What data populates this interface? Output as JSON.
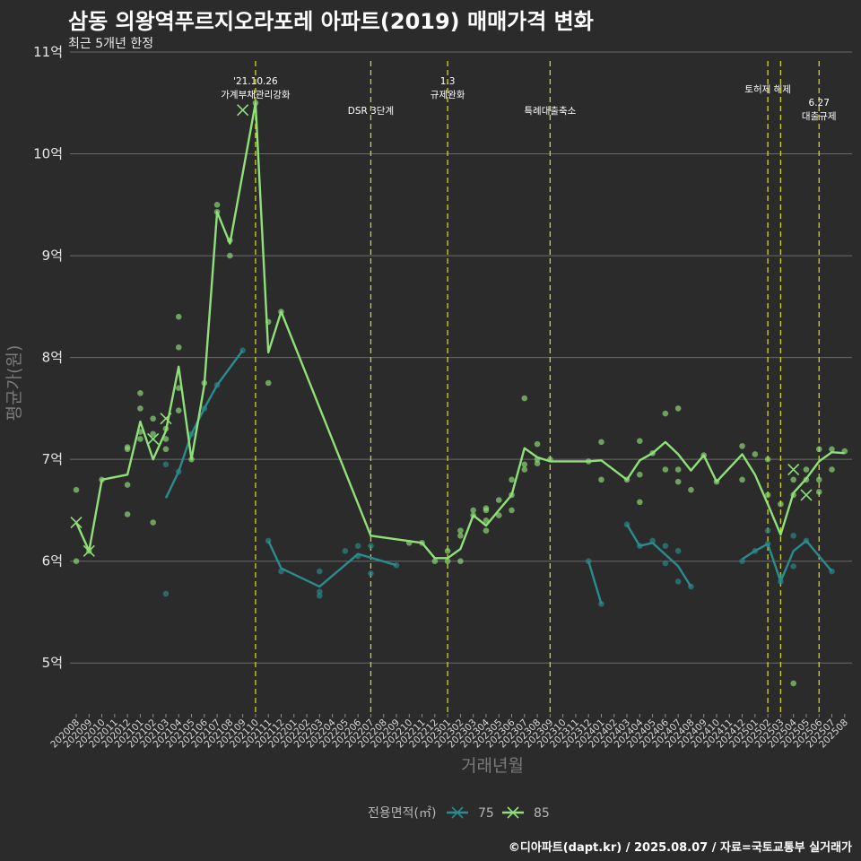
{
  "header": {
    "title": "삼동 의왕역푸르지오라포레 아파트(2019) 매매가격 변화",
    "subtitle": "최근 5개년 한정"
  },
  "caption": "©디아파트(dapt.kr) / 2025.08.07 / 자료=국토교통부 실거래가",
  "colors": {
    "background": "#2b2b2b",
    "s75": "#2a8c8c",
    "s85": "#90e07a",
    "event": "#d4d41e"
  },
  "chart_data": {
    "type": "line",
    "xlabel": "거래년월",
    "ylabel": "평균가(원)",
    "ylim": [
      4.5,
      11
    ],
    "y_ticks": [
      5,
      6,
      7,
      8,
      9,
      10,
      11
    ],
    "y_tick_labels": [
      "5억",
      "6억",
      "7억",
      "8억",
      "9억",
      "10억",
      "11억"
    ],
    "legend_title": "전용면적(㎡)",
    "legend_position": "bottom",
    "grid": true,
    "categories": [
      "202008",
      "202009",
      "202010",
      "202011",
      "202012",
      "202101",
      "202102",
      "202103",
      "202104",
      "202105",
      "202106",
      "202107",
      "202108",
      "202109",
      "202110",
      "202111",
      "202112",
      "202201",
      "202202",
      "202203",
      "202204",
      "202205",
      "202206",
      "202207",
      "202208",
      "202209",
      "202210",
      "202211",
      "202212",
      "202301",
      "202302",
      "202303",
      "202304",
      "202305",
      "202306",
      "202307",
      "202308",
      "202309",
      "202310",
      "202311",
      "202312",
      "202401",
      "202402",
      "202403",
      "202404",
      "202405",
      "202406",
      "202407",
      "202408",
      "202409",
      "202410",
      "202411",
      "202412",
      "202501",
      "202502",
      "202503",
      "202504",
      "202505",
      "202506",
      "202507",
      "202508"
    ],
    "events": [
      {
        "x": "202110",
        "label": "'21.10.26\n가계부채관리강화",
        "row": 1
      },
      {
        "x": "202207",
        "label": "DSR 3단계",
        "row": 3
      },
      {
        "x": "202301",
        "label": "1.3\n규제완화",
        "row": 1
      },
      {
        "x": "202309",
        "label": "특례대출축소",
        "row": 3
      },
      {
        "x": "202502",
        "label": "토허제 해제",
        "row": 2
      },
      {
        "x": "202503",
        "label": "",
        "row": 2
      },
      {
        "x": "202506",
        "label": "6.27\n대출규제",
        "row": 4
      }
    ],
    "series": [
      {
        "name": "75",
        "color": "#2a8c8c",
        "line": [
          [
            [
              "202103",
              6.62
            ],
            [
              "202104",
              6.88
            ],
            [
              "202105",
              7.25
            ],
            [
              "202106",
              7.5
            ],
            [
              "202107",
              7.73
            ],
            [
              "202109",
              8.07
            ]
          ],
          [
            [
              "202111",
              6.2
            ],
            [
              "202112",
              5.93
            ],
            [
              "202203",
              5.75
            ],
            [
              "202206",
              6.07
            ],
            [
              "202209",
              5.96
            ]
          ],
          [
            [
              "202312",
              6.0
            ],
            [
              "202401",
              5.58
            ]
          ],
          [
            [
              "202403",
              6.36
            ],
            [
              "202404",
              6.15
            ],
            [
              "202405",
              6.18
            ],
            [
              "202407",
              5.95
            ],
            [
              "202408",
              5.75
            ]
          ],
          [
            [
              "202412",
              6.02
            ],
            [
              "202501",
              6.1
            ],
            [
              "202502",
              6.17
            ],
            [
              "202503",
              5.8
            ],
            [
              "202504",
              6.1
            ],
            [
              "202505",
              6.2
            ],
            [
              "202507",
              5.9
            ]
          ]
        ],
        "points": [
          [
            "202103",
            6.95
          ],
          [
            "202103",
            5.68
          ],
          [
            "202104",
            6.88
          ],
          [
            "202105",
            7.25
          ],
          [
            "202106",
            7.5
          ],
          [
            "202107",
            7.73
          ],
          [
            "202109",
            8.07
          ],
          [
            "202111",
            6.2
          ],
          [
            "202112",
            5.9
          ],
          [
            "202203",
            5.66
          ],
          [
            "202203",
            5.7
          ],
          [
            "202203",
            5.9
          ],
          [
            "202205",
            6.1
          ],
          [
            "202206",
            6.05
          ],
          [
            "202206",
            6.15
          ],
          [
            "202207",
            5.88
          ],
          [
            "202207",
            6.15
          ],
          [
            "202209",
            5.96
          ],
          [
            "202312",
            6.0
          ],
          [
            "202401",
            5.58
          ],
          [
            "202403",
            6.36
          ],
          [
            "202404",
            6.15
          ],
          [
            "202405",
            6.2
          ],
          [
            "202406",
            6.15
          ],
          [
            "202406",
            5.98
          ],
          [
            "202407",
            5.8
          ],
          [
            "202407",
            6.1
          ],
          [
            "202408",
            5.75
          ],
          [
            "202412",
            6.0
          ],
          [
            "202501",
            6.1
          ],
          [
            "202502",
            6.17
          ],
          [
            "202502",
            6.3
          ],
          [
            "202503",
            5.8
          ],
          [
            "202503",
            5.85
          ],
          [
            "202504",
            6.25
          ],
          [
            "202504",
            5.95
          ],
          [
            "202505",
            6.2
          ],
          [
            "202507",
            5.9
          ]
        ],
        "markers": [
          [
            "202102",
            7.2
          ]
        ]
      },
      {
        "name": "85",
        "color": "#90e07a",
        "line": [
          [
            [
              "202008",
              6.38
            ],
            [
              "202009",
              6.1
            ],
            [
              "202010",
              6.8
            ],
            [
              "202012",
              6.85
            ],
            [
              "202101",
              7.37
            ],
            [
              "202102",
              7.0
            ],
            [
              "202103",
              7.28
            ],
            [
              "202104",
              7.91
            ],
            [
              "202105",
              7.0
            ],
            [
              "202106",
              7.73
            ],
            [
              "202107",
              9.43
            ],
            [
              "202108",
              9.12
            ],
            [
              "202110",
              10.5
            ],
            [
              "202111",
              8.05
            ],
            [
              "202112",
              8.45
            ],
            [
              "202207",
              6.25
            ],
            [
              "202211",
              6.18
            ],
            [
              "202212",
              6.03
            ],
            [
              "202301",
              6.03
            ],
            [
              "202302",
              6.12
            ],
            [
              "202303",
              6.45
            ],
            [
              "202304",
              6.35
            ],
            [
              "202305",
              6.5
            ],
            [
              "202306",
              6.65
            ],
            [
              "202307",
              7.11
            ],
            [
              "202308",
              7.02
            ],
            [
              "202309",
              6.98
            ],
            [
              "202312",
              6.98
            ],
            [
              "202401",
              6.99
            ],
            [
              "202403",
              6.8
            ],
            [
              "202404",
              6.99
            ],
            [
              "202405",
              7.06
            ],
            [
              "202406",
              7.17
            ],
            [
              "202407",
              7.05
            ],
            [
              "202408",
              6.89
            ],
            [
              "202409",
              7.04
            ],
            [
              "202410",
              6.78
            ],
            [
              "202412",
              7.05
            ],
            [
              "202501",
              6.85
            ],
            [
              "202502",
              6.56
            ],
            [
              "202503",
              6.26
            ],
            [
              "202504",
              6.67
            ],
            [
              "202505",
              6.81
            ],
            [
              "202506",
              6.98
            ],
            [
              "202507",
              7.07
            ],
            [
              "202508",
              7.06
            ]
          ]
        ],
        "points": [
          [
            "202008",
            6.7
          ],
          [
            "202008",
            6.0
          ],
          [
            "202009",
            6.1
          ],
          [
            "202010",
            6.8
          ],
          [
            "202012",
            7.1
          ],
          [
            "202012",
            7.12
          ],
          [
            "202012",
            6.75
          ],
          [
            "202012",
            6.46
          ],
          [
            "202101",
            7.65
          ],
          [
            "202101",
            7.5
          ],
          [
            "202101",
            7.27
          ],
          [
            "202101",
            7.2
          ],
          [
            "202102",
            7.4
          ],
          [
            "202102",
            7.25
          ],
          [
            "202102",
            6.38
          ],
          [
            "202103",
            7.3
          ],
          [
            "202103",
            7.1
          ],
          [
            "202103",
            7.2
          ],
          [
            "202104",
            8.4
          ],
          [
            "202104",
            8.1
          ],
          [
            "202104",
            7.7
          ],
          [
            "202104",
            7.48
          ],
          [
            "202105",
            7.0
          ],
          [
            "202106",
            7.75
          ],
          [
            "202107",
            9.5
          ],
          [
            "202107",
            9.43
          ],
          [
            "202108",
            9.15
          ],
          [
            "202108",
            9.0
          ],
          [
            "202110",
            10.5
          ],
          [
            "202111",
            8.35
          ],
          [
            "202111",
            7.75
          ],
          [
            "202112",
            8.45
          ],
          [
            "202210",
            6.18
          ],
          [
            "202211",
            6.18
          ],
          [
            "202212",
            6.0
          ],
          [
            "202301",
            6.0
          ],
          [
            "202301",
            6.1
          ],
          [
            "202302",
            6.3
          ],
          [
            "202302",
            6.25
          ],
          [
            "202302",
            6.0
          ],
          [
            "202303",
            6.5
          ],
          [
            "202303",
            6.45
          ],
          [
            "202304",
            6.5
          ],
          [
            "202304",
            6.4
          ],
          [
            "202304",
            6.3
          ],
          [
            "202304",
            6.52
          ],
          [
            "202305",
            6.6
          ],
          [
            "202305",
            6.45
          ],
          [
            "202306",
            6.8
          ],
          [
            "202306",
            6.65
          ],
          [
            "202306",
            6.5
          ],
          [
            "202307",
            7.6
          ],
          [
            "202307",
            6.95
          ],
          [
            "202307",
            6.9
          ],
          [
            "202308",
            7.15
          ],
          [
            "202308",
            7.0
          ],
          [
            "202308",
            6.96
          ],
          [
            "202309",
            7.0
          ],
          [
            "202312",
            6.98
          ],
          [
            "202401",
            7.17
          ],
          [
            "202401",
            6.8
          ],
          [
            "202403",
            6.8
          ],
          [
            "202404",
            7.18
          ],
          [
            "202404",
            6.85
          ],
          [
            "202404",
            6.58
          ],
          [
            "202405",
            7.06
          ],
          [
            "202406",
            7.45
          ],
          [
            "202406",
            6.9
          ],
          [
            "202407",
            7.5
          ],
          [
            "202407",
            6.9
          ],
          [
            "202407",
            6.78
          ],
          [
            "202408",
            6.7
          ],
          [
            "202409",
            7.04
          ],
          [
            "202410",
            6.78
          ],
          [
            "202412",
            7.13
          ],
          [
            "202412",
            6.8
          ],
          [
            "202501",
            7.05
          ],
          [
            "202502",
            7.0
          ],
          [
            "202502",
            6.65
          ],
          [
            "202503",
            6.56
          ],
          [
            "202504",
            6.8
          ],
          [
            "202504",
            6.65
          ],
          [
            "202504",
            4.8
          ],
          [
            "202505",
            6.9
          ],
          [
            "202505",
            6.8
          ],
          [
            "202506",
            7.1
          ],
          [
            "202506",
            6.8
          ],
          [
            "202506",
            6.68
          ],
          [
            "202507",
            7.1
          ],
          [
            "202507",
            6.9
          ],
          [
            "202508",
            7.08
          ]
        ],
        "markers": [
          [
            "202008",
            6.38
          ],
          [
            "202009",
            6.1
          ],
          [
            "202102",
            7.2
          ],
          [
            "202103",
            7.4
          ],
          [
            "202109",
            10.43
          ],
          [
            "202504",
            6.9
          ],
          [
            "202505",
            6.65
          ]
        ]
      }
    ]
  }
}
